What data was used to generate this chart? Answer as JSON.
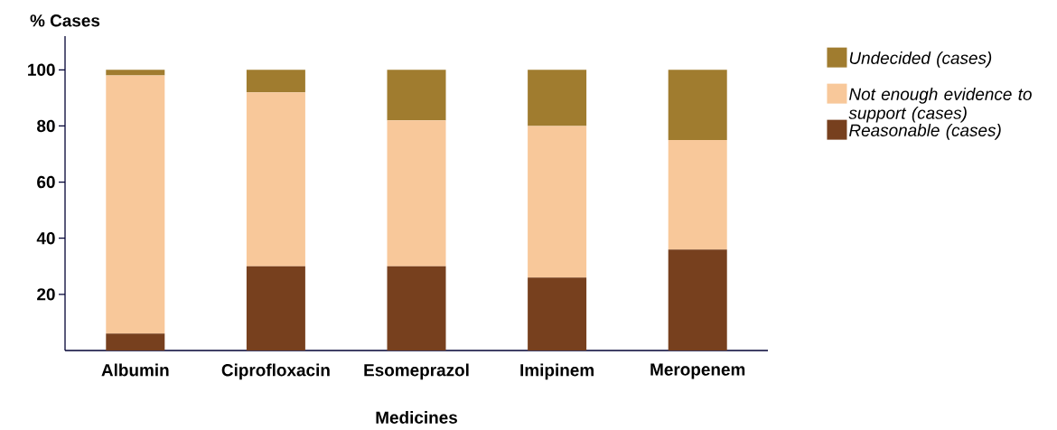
{
  "chart_data": {
    "type": "bar",
    "stacked": true,
    "xlabel": "Medicines",
    "ylabel": "% Cases",
    "categories": [
      "Albumin",
      "Ciprofloxacin",
      "Esomeprazol",
      "Imipinem",
      "Meropenem"
    ],
    "series": [
      {
        "name": "Reasonable (cases)",
        "color": "#77401e",
        "values": [
          6,
          30,
          30,
          26,
          36
        ]
      },
      {
        "name": "Not enough evidence to support (cases)",
        "color": "#f8c89a",
        "values": [
          92,
          62,
          52,
          54,
          39
        ]
      },
      {
        "name": "Undecided (cases)",
        "color": "#a07c2f",
        "values": [
          2,
          8,
          18,
          20,
          25
        ]
      }
    ],
    "ylim": [
      0,
      112
    ],
    "yticks": [
      20,
      40,
      60,
      80,
      100
    ],
    "legend": "right"
  }
}
